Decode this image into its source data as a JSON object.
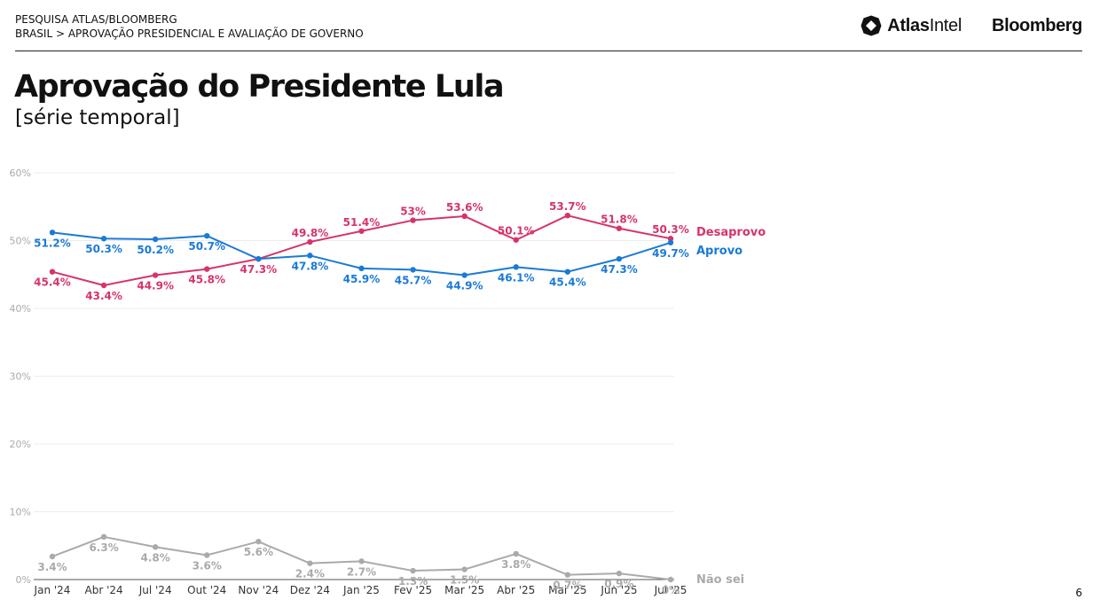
{
  "header": {
    "line1": "PESQUISA ATLAS/BLOOMBERG",
    "line2": "BRASIL > APROVAÇÃO PRESIDENCIAL E AVALIAÇÃO DE GOVERNO",
    "logo_atlas_bold": "Atlas",
    "logo_atlas_rest": "Intel",
    "logo_bloomberg": "Bloomberg"
  },
  "page_number": "6",
  "colors": {
    "desaprovo": "#d6336c",
    "aprovo": "#1a7ad6",
    "nao_sei": "#aaaaaa"
  },
  "chart_data": {
    "type": "line",
    "title": "Aprovação do Presidente Lula",
    "subtitle": "[série temporal]",
    "categories": [
      "Jan '24",
      "Abr '24",
      "Jul '24",
      "Out '24",
      "Nov '24",
      "Dez '24",
      "Jan '25",
      "Fev '25",
      "Mar '25",
      "Abr '25",
      "Mai '25",
      "Jun '25",
      "Jul '25"
    ],
    "ylim": [
      0,
      60
    ],
    "yticks": [
      0,
      10,
      20,
      30,
      40,
      50,
      60
    ],
    "ytick_labels": [
      "0%",
      "10%",
      "20%",
      "30%",
      "40%",
      "50%",
      "60%"
    ],
    "grid": true,
    "series": [
      {
        "name": "Desaprovo",
        "color": "#d6336c",
        "values": [
          45.4,
          43.4,
          44.9,
          45.8,
          47.3,
          49.8,
          51.4,
          53,
          53.6,
          50.1,
          53.7,
          51.8,
          50.3
        ],
        "labels": [
          "45.4%",
          "43.4%",
          "44.9%",
          "45.8%",
          "47.3%",
          "49.8%",
          "51.4%",
          "53%",
          "53.6%",
          "50.1%",
          "53.7%",
          "51.8%",
          "50.3%"
        ]
      },
      {
        "name": "Aprovo",
        "color": "#1a7ad6",
        "values": [
          51.2,
          50.3,
          50.2,
          50.7,
          47.3,
          47.8,
          45.9,
          45.7,
          44.9,
          46.1,
          45.4,
          47.3,
          49.7
        ],
        "labels": [
          "51.2%",
          "50.3%",
          "50.2%",
          "50.7%",
          "",
          "47.8%",
          "45.9%",
          "45.7%",
          "44.9%",
          "46.1%",
          "45.4%",
          "47.3%",
          "49.7%"
        ]
      },
      {
        "name": "Não sei",
        "color": "#aaaaaa",
        "values": [
          3.4,
          6.3,
          4.8,
          3.6,
          5.6,
          2.4,
          2.7,
          1.3,
          1.5,
          3.8,
          0.7,
          0.9,
          0
        ],
        "labels": [
          "3.4%",
          "6.3%",
          "4.8%",
          "3.6%",
          "5.6%",
          "2.4%",
          "2.7%",
          "1.3%",
          "1.5%",
          "3.8%",
          "0.7%",
          "0.9%",
          "0%"
        ]
      }
    ]
  }
}
